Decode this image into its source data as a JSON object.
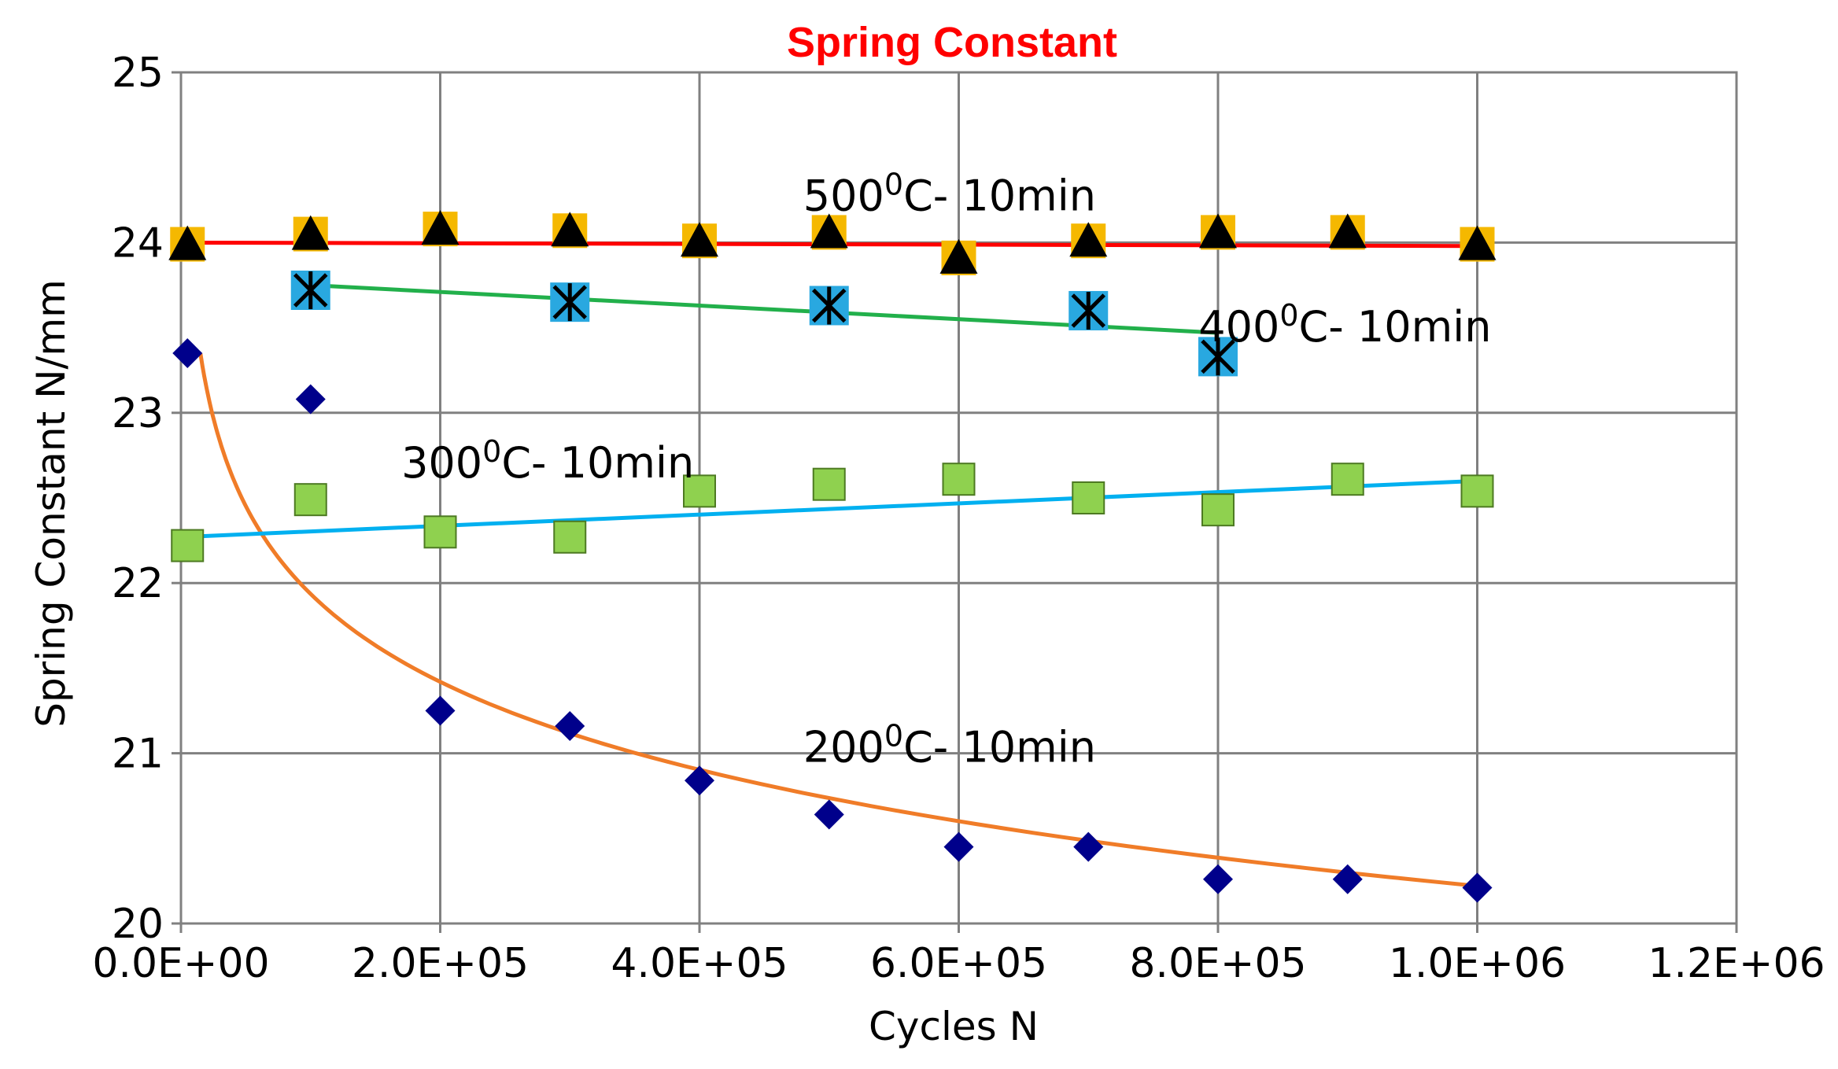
{
  "chart_data": {
    "type": "scatter",
    "title": "Spring Constant",
    "xlabel": "Cycles N",
    "ylabel": "Spring Constant N/mm",
    "xlim": [
      0,
      1200000
    ],
    "ylim": [
      20,
      25
    ],
    "x_ticks": [
      "0.0E+00",
      "2.0E+05",
      "4.0E+05",
      "6.0E+05",
      "8.0E+05",
      "1.0E+06",
      "1.2E+06"
    ],
    "y_ticks": [
      "20",
      "21",
      "22",
      "23",
      "24",
      "25"
    ],
    "grid": true,
    "series": [
      {
        "name": "200°C- 10min",
        "label_text": "200",
        "marker": "diamond",
        "marker_color": "#00008b",
        "trend_color": "#f07c28",
        "trend_type": "logarithmic",
        "label_pos": [
          480000,
          20.95
        ],
        "points": [
          [
            5000,
            23.35
          ],
          [
            100000,
            23.08
          ],
          [
            200000,
            21.25
          ],
          [
            300000,
            21.16
          ],
          [
            400000,
            20.84
          ],
          [
            500000,
            20.64
          ],
          [
            600000,
            20.45
          ],
          [
            700000,
            20.45
          ],
          [
            800000,
            20.26
          ],
          [
            900000,
            20.26
          ],
          [
            1000000,
            20.21
          ]
        ],
        "trend": [
          [
            15000,
            23.35
          ],
          [
            1000000,
            20.22
          ]
        ]
      },
      {
        "name": "300°C- 10min",
        "label_text": "300",
        "marker": "square",
        "marker_color": "#8fd14f",
        "trend_color": "#00b0f0",
        "trend_type": "linear",
        "label_pos": [
          170000,
          22.62
        ],
        "points": [
          [
            5000,
            22.22
          ],
          [
            100000,
            22.49
          ],
          [
            200000,
            22.3
          ],
          [
            300000,
            22.27
          ],
          [
            400000,
            22.54
          ],
          [
            500000,
            22.58
          ],
          [
            600000,
            22.61
          ],
          [
            700000,
            22.5
          ],
          [
            800000,
            22.43
          ],
          [
            900000,
            22.61
          ],
          [
            1000000,
            22.54
          ]
        ],
        "trend": [
          [
            0,
            22.27
          ],
          [
            1000000,
            22.6
          ]
        ]
      },
      {
        "name": "400°C- 10min",
        "label_text": "400",
        "marker": "square-star",
        "marker_color": "#29a8e0",
        "trend_color": "#22b04b",
        "trend_type": "linear",
        "label_pos": [
          785000,
          23.42
        ],
        "points": [
          [
            100000,
            23.72
          ],
          [
            300000,
            23.65
          ],
          [
            500000,
            23.63
          ],
          [
            700000,
            23.6
          ],
          [
            800000,
            23.33
          ]
        ],
        "trend": [
          [
            100000,
            23.75
          ],
          [
            800000,
            23.47
          ]
        ]
      },
      {
        "name": "500°C- 10min",
        "label_text": "500",
        "marker": "triangle",
        "marker_color": "#000000",
        "marker_back": "#f5b800",
        "trend_color": "#ff0000",
        "trend_type": "linear",
        "label_pos": [
          480000,
          24.19
        ],
        "points": [
          [
            5000,
            23.99
          ],
          [
            100000,
            24.05
          ],
          [
            200000,
            24.08
          ],
          [
            300000,
            24.07
          ],
          [
            400000,
            24.01
          ],
          [
            500000,
            24.06
          ],
          [
            600000,
            23.91
          ],
          [
            700000,
            24.01
          ],
          [
            800000,
            24.06
          ],
          [
            900000,
            24.06
          ],
          [
            1000000,
            23.99
          ]
        ],
        "trend": [
          [
            5000,
            24.0
          ],
          [
            1000000,
            23.98
          ]
        ]
      }
    ],
    "label_suffix": "C- 10min",
    "label_superscript": "0"
  }
}
